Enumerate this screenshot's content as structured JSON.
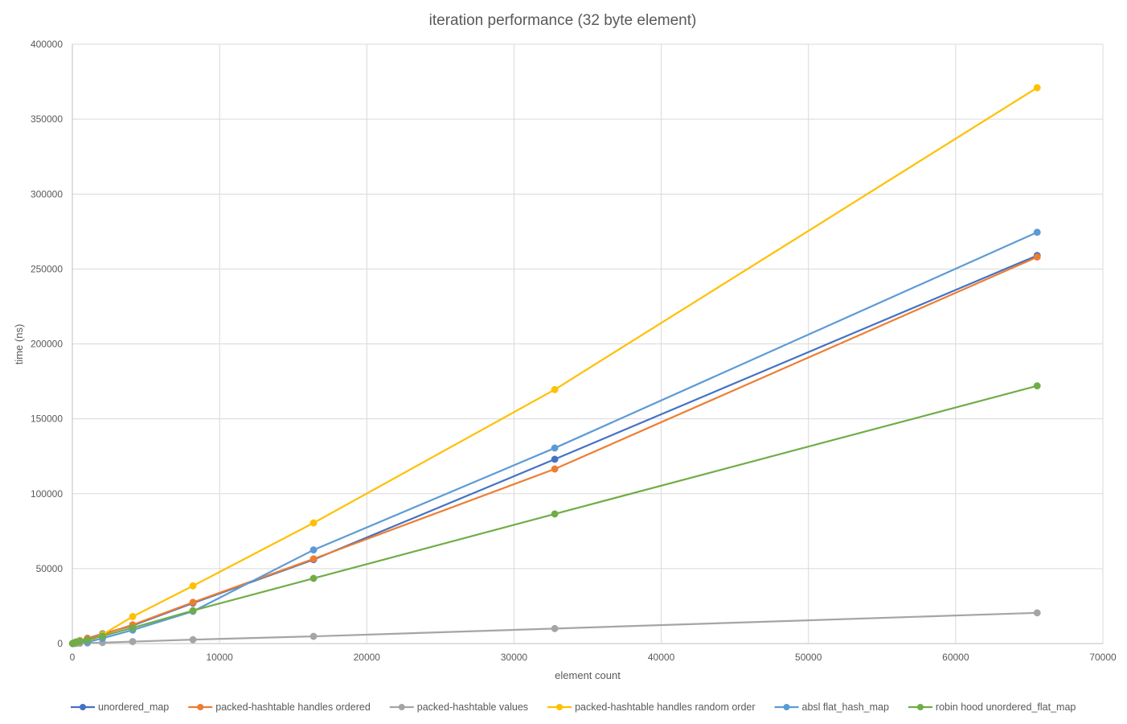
{
  "chart_data": {
    "type": "line",
    "title": "iteration performance (32 byte element)",
    "xlabel": "element count",
    "ylabel": "time (ns)",
    "xlim": [
      0,
      70000
    ],
    "ylim": [
      0,
      400000
    ],
    "xticks": [
      0,
      10000,
      20000,
      30000,
      40000,
      50000,
      60000,
      70000
    ],
    "yticks": [
      0,
      50000,
      100000,
      150000,
      200000,
      250000,
      300000,
      350000,
      400000
    ],
    "grid": true,
    "legend_position": "bottom",
    "x": [
      16,
      32,
      64,
      128,
      256,
      512,
      1024,
      2048,
      4096,
      8192,
      16384,
      32768,
      65536
    ],
    "series": [
      {
        "name": "unordered_map",
        "color": "#4472C4",
        "values": [
          60,
          120,
          250,
          500,
          1000,
          2000,
          3500,
          6500,
          12000,
          27000,
          56000,
          123000,
          259000
        ]
      },
      {
        "name": "packed-hashtable handles ordered",
        "color": "#ED7D31",
        "values": [
          60,
          120,
          250,
          500,
          1000,
          2000,
          3500,
          6000,
          12500,
          27500,
          56500,
          116500,
          258000
        ]
      },
      {
        "name": "packed-hashtable values",
        "color": "#A5A5A5",
        "values": [
          5,
          10,
          20,
          40,
          80,
          160,
          320,
          640,
          1300,
          2600,
          4800,
          10000,
          20500
        ]
      },
      {
        "name": "packed-hashtable handles random order",
        "color": "#FFC000",
        "values": [
          60,
          120,
          250,
          500,
          1000,
          1800,
          900,
          6000,
          18000,
          38500,
          80500,
          169500,
          371000
        ]
      },
      {
        "name": "absl flat_hash_map",
        "color": "#5B9BD5",
        "values": [
          60,
          120,
          250,
          500,
          1000,
          1500,
          900,
          3500,
          9000,
          21500,
          62500,
          130500,
          274500
        ]
      },
      {
        "name": "robin hood unordered_flat_map",
        "color": "#70AD47",
        "values": [
          40,
          80,
          160,
          320,
          800,
          1500,
          2500,
          5000,
          10500,
          22000,
          43500,
          86500,
          172000
        ]
      }
    ]
  }
}
